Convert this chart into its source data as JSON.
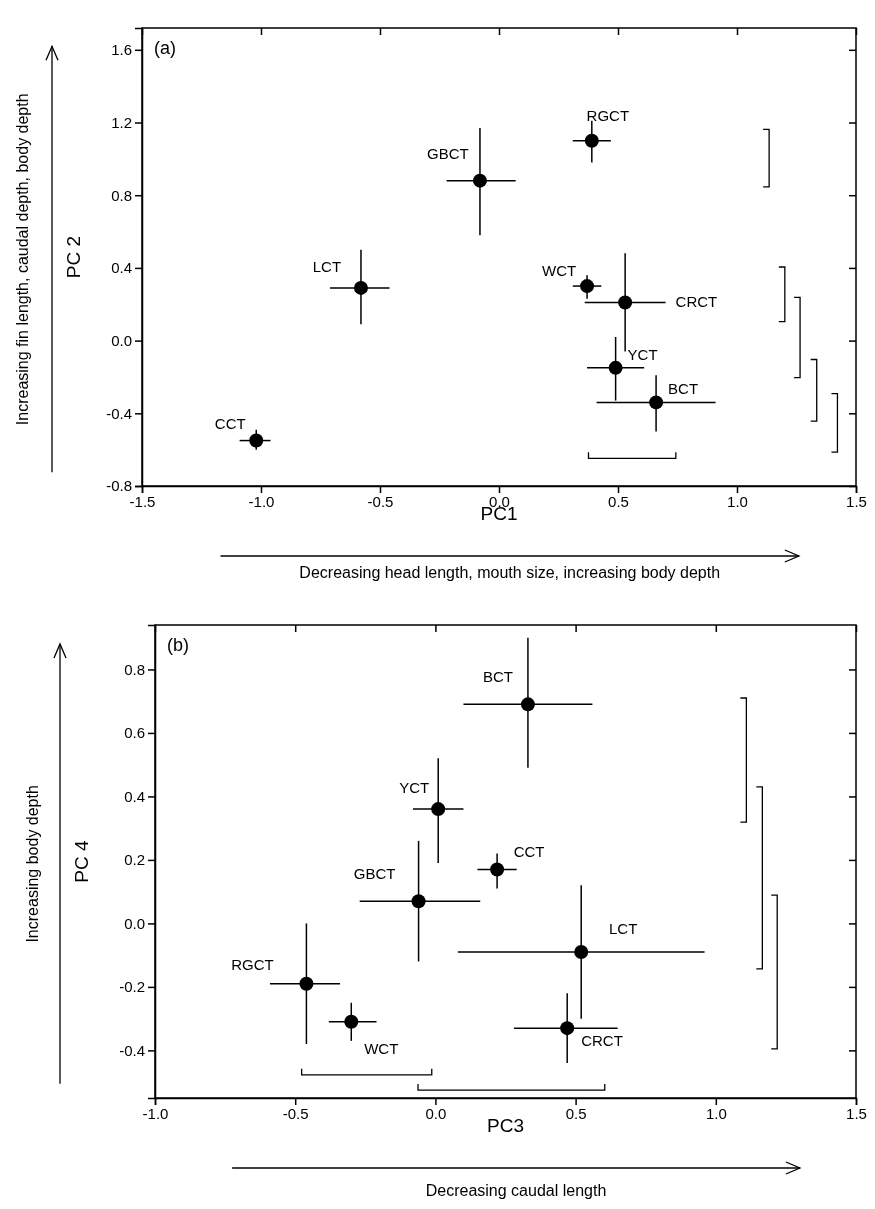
{
  "chart_data": [
    {
      "type": "scatter",
      "title": "(a)",
      "xlabel": "PC1",
      "ylabel": "PC 2",
      "marker": "circle",
      "annotations": [
        "Decreasing head length, mouth size, increasing body depth",
        "Increasing fin length, caudal depth, body depth"
      ],
      "xlim": [
        -1.5,
        1.5
      ],
      "xticks": [
        {
          "value": -1.5,
          "label": "-1.5"
        },
        {
          "value": -1,
          "label": "-1.0"
        },
        {
          "value": -0.5,
          "label": "-0.5"
        },
        {
          "value": 0,
          "label": "0.0"
        },
        {
          "value": 0.5,
          "label": "0.5"
        },
        {
          "value": 1,
          "label": "1.0"
        },
        {
          "value": 1.5,
          "label": "1.5"
        }
      ],
      "ylim": [
        -0.8,
        1.72
      ],
      "yticks": [
        {
          "value": -0.8,
          "label": "-0.8"
        },
        {
          "value": -0.4,
          "label": "-0.4"
        },
        {
          "value": 0,
          "label": "0.0"
        },
        {
          "value": 0.4,
          "label": "0.4"
        },
        {
          "value": 0.8,
          "label": "0.8"
        },
        {
          "value": 1.2,
          "label": "1.2"
        },
        {
          "value": 1.6,
          "label": "1.6"
        }
      ],
      "series": [
        {
          "name": "CCT",
          "color": "#000000",
          "x": [
            -1.02
          ],
          "values": [
            -0.55
          ],
          "errors": [
            [
              -0.6,
              -0.49
            ]
          ],
          "xerrors": [
            [
              -1.09,
              -0.96
            ]
          ]
        },
        {
          "name": "LCT",
          "color": "#000000",
          "x": [
            -0.58
          ],
          "values": [
            0.29
          ],
          "errors": [
            [
              0.09,
              0.5
            ]
          ],
          "xerrors": [
            [
              -0.71,
              -0.46
            ]
          ]
        },
        {
          "name": "GBCT",
          "color": "#000000",
          "x": [
            -0.08
          ],
          "values": [
            0.88
          ],
          "errors": [
            [
              0.58,
              1.17
            ]
          ],
          "xerrors": [
            [
              -0.22,
              0.07
            ]
          ]
        },
        {
          "name": "RGCT",
          "color": "#000000",
          "x": [
            0.39
          ],
          "values": [
            1.1
          ],
          "errors": [
            [
              0.98,
              1.21
            ]
          ],
          "xerrors": [
            [
              0.31,
              0.47
            ]
          ]
        },
        {
          "name": "WCT",
          "color": "#000000",
          "x": [
            0.37
          ],
          "values": [
            0.3
          ],
          "errors": [
            [
              0.23,
              0.36
            ]
          ],
          "xerrors": [
            [
              0.31,
              0.43
            ]
          ]
        },
        {
          "name": "CRCT",
          "color": "#000000",
          "x": [
            0.53
          ],
          "values": [
            0.21
          ],
          "errors": [
            [
              -0.06,
              0.48
            ]
          ],
          "xerrors": [
            [
              0.36,
              0.7
            ]
          ]
        },
        {
          "name": "YCT",
          "color": "#000000",
          "x": [
            0.49
          ],
          "values": [
            -0.15
          ],
          "errors": [
            [
              -0.33,
              0.02
            ]
          ],
          "xerrors": [
            [
              0.37,
              0.61
            ]
          ]
        },
        {
          "name": "BCT",
          "color": "#000000",
          "x": [
            0.66
          ],
          "values": [
            -0.34
          ],
          "errors": [
            [
              -0.5,
              -0.19
            ]
          ],
          "xerrors": [
            [
              0.41,
              0.91
            ]
          ]
        }
      ]
    },
    {
      "type": "scatter",
      "title": "(b)",
      "xlabel": "PC3",
      "ylabel": "PC 4",
      "marker": "circle",
      "annotations": [
        "Decreasing caudal length",
        "Increasing body depth"
      ],
      "xlim": [
        -1,
        1.5
      ],
      "xticks": [
        {
          "value": -1,
          "label": "-1.0"
        },
        {
          "value": -0.5,
          "label": "-0.5"
        },
        {
          "value": 0,
          "label": "0.0"
        },
        {
          "value": 0.5,
          "label": "0.5"
        },
        {
          "value": 1,
          "label": "1.0"
        },
        {
          "value": 1.5,
          "label": "1.5"
        }
      ],
      "ylim": [
        -0.55,
        0.94
      ],
      "yticks": [
        {
          "value": -0.4,
          "label": "-0.4"
        },
        {
          "value": -0.2,
          "label": "-0.2"
        },
        {
          "value": 0,
          "label": "0.0"
        },
        {
          "value": 0.2,
          "label": "0.2"
        },
        {
          "value": 0.4,
          "label": "0.4"
        },
        {
          "value": 0.6,
          "label": "0.6"
        },
        {
          "value": 0.8,
          "label": "0.8"
        }
      ],
      "series": [
        {
          "name": "BCT",
          "color": "#000000",
          "x": [
            0.33
          ],
          "values": [
            0.69
          ],
          "errors": [
            [
              0.49,
              0.9
            ]
          ],
          "xerrors": [
            [
              0.1,
              0.56
            ]
          ]
        },
        {
          "name": "YCT",
          "color": "#000000",
          "x": [
            0.01
          ],
          "values": [
            0.36
          ],
          "errors": [
            [
              0.19,
              0.52
            ]
          ],
          "xerrors": [
            [
              -0.08,
              0.1
            ]
          ]
        },
        {
          "name": "CCT",
          "color": "#000000",
          "x": [
            0.22
          ],
          "values": [
            0.17
          ],
          "errors": [
            [
              0.11,
              0.22
            ]
          ],
          "xerrors": [
            [
              0.15,
              0.29
            ]
          ]
        },
        {
          "name": "GBCT",
          "color": "#000000",
          "x": [
            -0.06
          ],
          "values": [
            0.07
          ],
          "errors": [
            [
              -0.12,
              0.26
            ]
          ],
          "xerrors": [
            [
              -0.27,
              0.16
            ]
          ]
        },
        {
          "name": "LCT",
          "color": "#000000",
          "x": [
            0.52
          ],
          "values": [
            -0.09
          ],
          "errors": [
            [
              -0.3,
              0.12
            ]
          ],
          "xerrors": [
            [
              0.08,
              0.96
            ]
          ]
        },
        {
          "name": "RGCT",
          "color": "#000000",
          "x": [
            -0.46
          ],
          "values": [
            -0.19
          ],
          "errors": [
            [
              -0.38,
              0
            ]
          ],
          "xerrors": [
            [
              -0.59,
              -0.34
            ]
          ]
        },
        {
          "name": "WCT",
          "color": "#000000",
          "x": [
            -0.3
          ],
          "values": [
            -0.31
          ],
          "errors": [
            [
              -0.37,
              -0.25
            ]
          ],
          "xerrors": [
            [
              -0.38,
              -0.21
            ]
          ]
        },
        {
          "name": "CRCT",
          "color": "#000000",
          "x": [
            0.47
          ],
          "values": [
            -0.33
          ],
          "errors": [
            [
              -0.44,
              -0.22
            ]
          ],
          "xerrors": [
            [
              0.28,
              0.65
            ]
          ]
        }
      ]
    }
  ]
}
